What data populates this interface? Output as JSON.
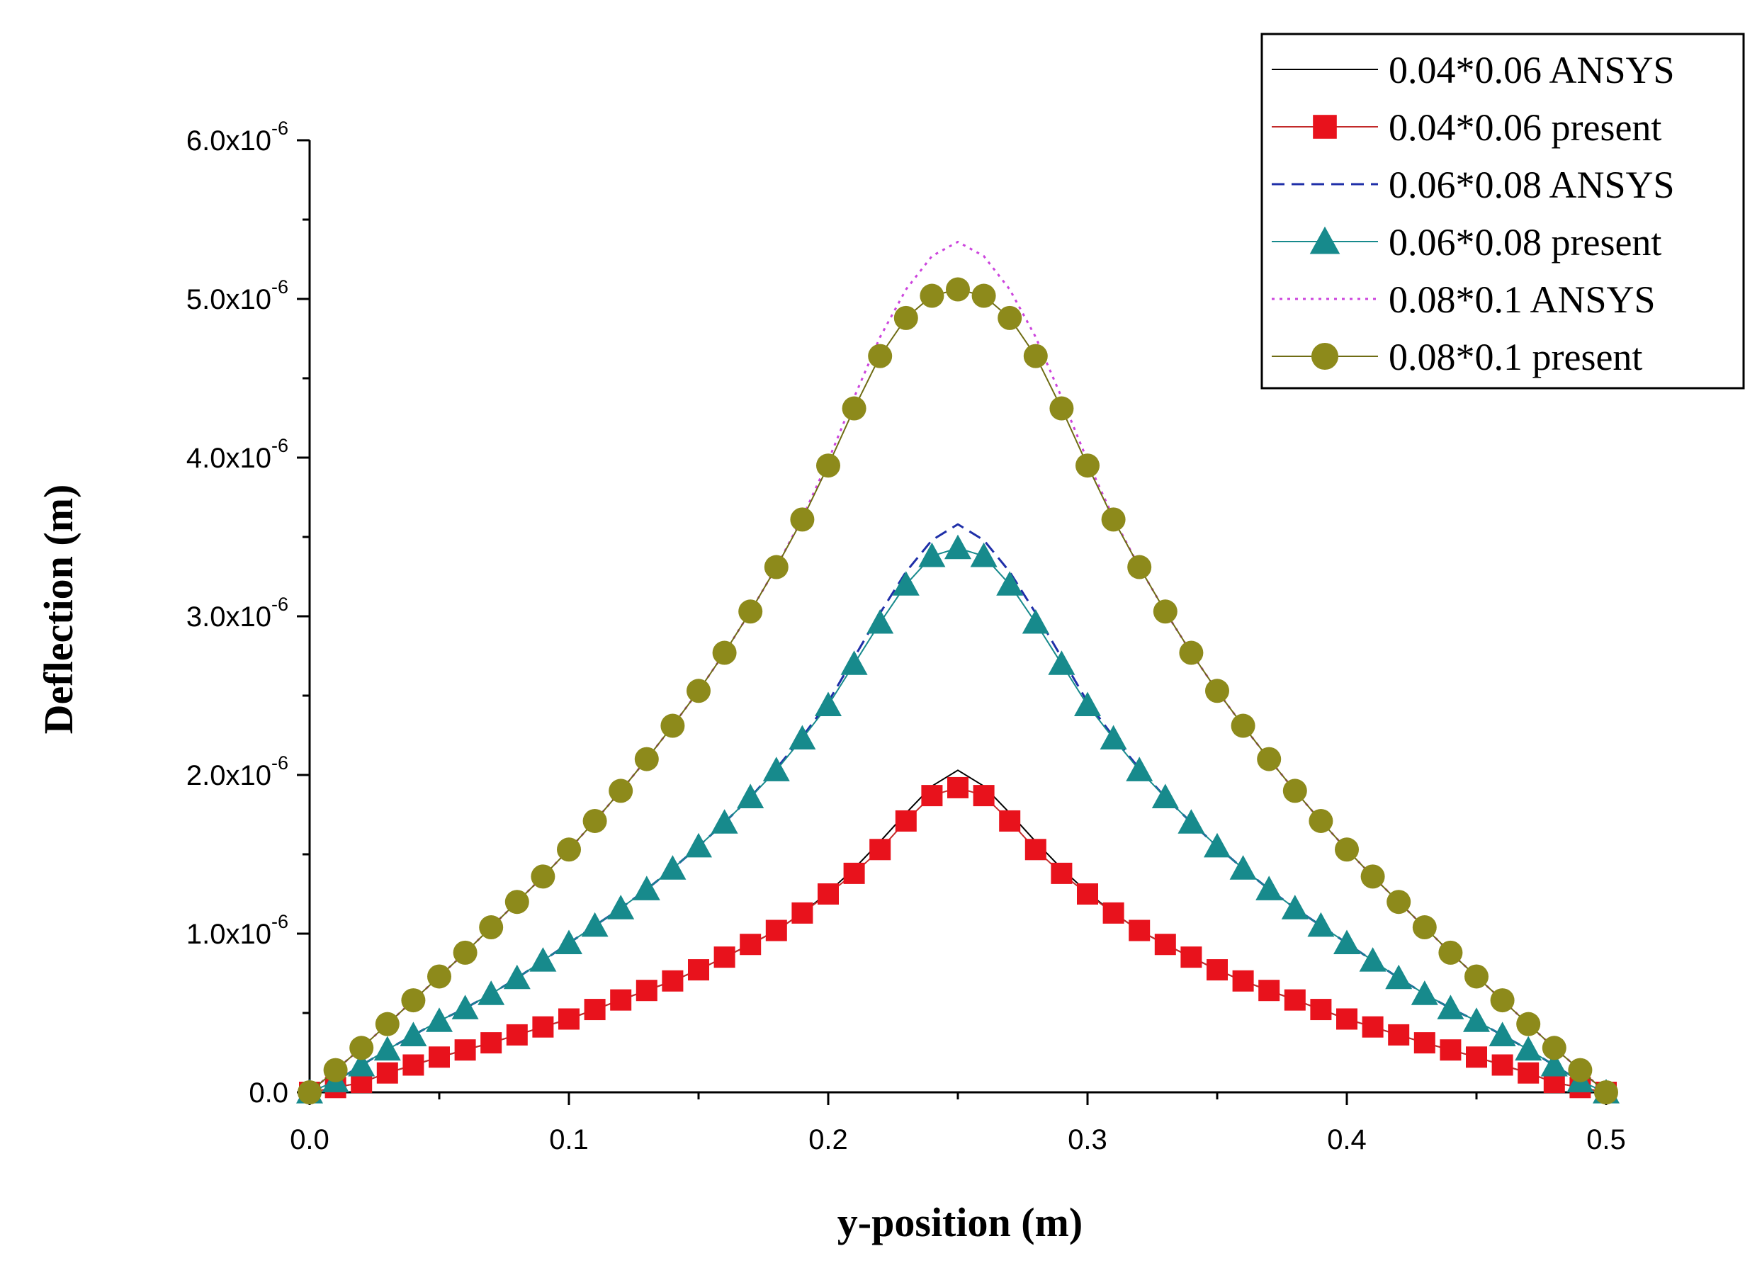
{
  "chart_data": {
    "type": "line",
    "title": "",
    "xlabel": "y-position (m)",
    "ylabel": "Deflection (m)",
    "xlim": [
      0,
      0.5
    ],
    "ylim": [
      0,
      6e-06
    ],
    "grid": false,
    "legend_position": "top-right",
    "x_ticks": [
      {
        "value": 0.0,
        "label": "0.0"
      },
      {
        "value": 0.1,
        "label": "0.1"
      },
      {
        "value": 0.2,
        "label": "0.2"
      },
      {
        "value": 0.3,
        "label": "0.3"
      },
      {
        "value": 0.4,
        "label": "0.4"
      },
      {
        "value": 0.5,
        "label": "0.5"
      }
    ],
    "y_ticks": [
      {
        "value": 0.0,
        "label": "0.0",
        "mantissa": "",
        "exponent": ""
      },
      {
        "value": 1e-06,
        "label": "1.0x10-6",
        "mantissa": "1.0x10",
        "exponent": "-6"
      },
      {
        "value": 2e-06,
        "label": "2.0x10-6",
        "mantissa": "2.0x10",
        "exponent": "-6"
      },
      {
        "value": 3e-06,
        "label": "3.0x10-6",
        "mantissa": "3.0x10",
        "exponent": "-6"
      },
      {
        "value": 4e-06,
        "label": "4.0x10-6",
        "mantissa": "4.0x10",
        "exponent": "-6"
      },
      {
        "value": 5e-06,
        "label": "5.0x10-6",
        "mantissa": "5.0x10",
        "exponent": "-6"
      },
      {
        "value": 6e-06,
        "label": "6.0x10-6",
        "mantissa": "6.0x10",
        "exponent": "-6"
      }
    ],
    "x": [
      0.0,
      0.01,
      0.02,
      0.03,
      0.04,
      0.05,
      0.06,
      0.07,
      0.08,
      0.09,
      0.1,
      0.11,
      0.12,
      0.13,
      0.14,
      0.15,
      0.16,
      0.17,
      0.18,
      0.19,
      0.2,
      0.21,
      0.22,
      0.23,
      0.24,
      0.25,
      0.26,
      0.27,
      0.28,
      0.29,
      0.3,
      0.31,
      0.32,
      0.33,
      0.34,
      0.35,
      0.36,
      0.37,
      0.38,
      0.39,
      0.4,
      0.41,
      0.42,
      0.43,
      0.44,
      0.45,
      0.46,
      0.47,
      0.48,
      0.49,
      0.5
    ],
    "series": [
      {
        "name": "0.04*0.06 ANSYS",
        "style": "solid",
        "marker": "none",
        "color": "#000000",
        "values": [
          0.0,
          3e-08,
          6.2e-08,
          1.22e-07,
          1.72e-07,
          2.22e-07,
          2.67e-07,
          3.12e-07,
          3.62e-07,
          4.12e-07,
          4.62e-07,
          5.22e-07,
          5.82e-07,
          6.42e-07,
          7.02e-07,
          7.72e-07,
          8.52e-07,
          9.32e-07,
          1.02e-06,
          1.13e-06,
          1.26e-06,
          1.41e-06,
          1.58e-06,
          1.76e-06,
          1.93e-06,
          2.03e-06,
          1.93e-06,
          1.76e-06,
          1.58e-06,
          1.41e-06,
          1.26e-06,
          1.13e-06,
          1.02e-06,
          9.32e-07,
          8.52e-07,
          7.72e-07,
          7.02e-07,
          6.42e-07,
          5.82e-07,
          5.22e-07,
          4.62e-07,
          4.12e-07,
          3.62e-07,
          3.12e-07,
          2.67e-07,
          2.22e-07,
          1.72e-07,
          1.22e-07,
          6.2e-08,
          3e-08,
          0.0
        ]
      },
      {
        "name": "0.04*0.06 present",
        "style": "solid",
        "marker": "square",
        "color": "#e8121c",
        "values": [
          0.0,
          3e-08,
          6.2e-08,
          1.22e-07,
          1.72e-07,
          2.22e-07,
          2.67e-07,
          3.12e-07,
          3.62e-07,
          4.12e-07,
          4.62e-07,
          5.22e-07,
          5.82e-07,
          6.42e-07,
          7.02e-07,
          7.72e-07,
          8.52e-07,
          9.32e-07,
          1.02e-06,
          1.13e-06,
          1.25e-06,
          1.38e-06,
          1.53e-06,
          1.71e-06,
          1.87e-06,
          1.92e-06,
          1.87e-06,
          1.71e-06,
          1.53e-06,
          1.38e-06,
          1.25e-06,
          1.13e-06,
          1.02e-06,
          9.32e-07,
          8.52e-07,
          7.72e-07,
          7.02e-07,
          6.42e-07,
          5.82e-07,
          5.22e-07,
          4.62e-07,
          4.12e-07,
          3.62e-07,
          3.12e-07,
          2.67e-07,
          2.22e-07,
          1.72e-07,
          1.22e-07,
          6.2e-08,
          3e-08,
          0.0
        ]
      },
      {
        "name": "0.06*0.08 ANSYS",
        "style": "dashed",
        "marker": "none",
        "color": "#1f2fa8",
        "values": [
          0.0,
          7e-08,
          1.7e-07,
          2.7e-07,
          3.6e-07,
          4.5e-07,
          5.3e-07,
          6.2e-07,
          7.2e-07,
          8.3e-07,
          9.4e-07,
          1.05e-06,
          1.16e-06,
          1.28e-06,
          1.41e-06,
          1.55e-06,
          1.7e-06,
          1.86e-06,
          2.04e-06,
          2.24e-06,
          2.46e-06,
          2.74e-06,
          3.02e-06,
          3.28e-06,
          3.48e-06,
          3.58e-06,
          3.48e-06,
          3.28e-06,
          3.02e-06,
          2.74e-06,
          2.46e-06,
          2.24e-06,
          2.04e-06,
          1.86e-06,
          1.7e-06,
          1.55e-06,
          1.41e-06,
          1.28e-06,
          1.16e-06,
          1.05e-06,
          9.4e-07,
          8.3e-07,
          7.2e-07,
          6.2e-07,
          5.3e-07,
          4.5e-07,
          3.6e-07,
          2.7e-07,
          1.7e-07,
          7e-08,
          0.0
        ]
      },
      {
        "name": "0.06*0.08 present",
        "style": "solid",
        "marker": "triangle",
        "color": "#178a8c",
        "values": [
          0.0,
          7e-08,
          1.7e-07,
          2.7e-07,
          3.6e-07,
          4.5e-07,
          5.3e-07,
          6.2e-07,
          7.2e-07,
          8.3e-07,
          9.4e-07,
          1.05e-06,
          1.16e-06,
          1.28e-06,
          1.41e-06,
          1.55e-06,
          1.7e-06,
          1.86e-06,
          2.03e-06,
          2.23e-06,
          2.44e-06,
          2.7e-06,
          2.96e-06,
          3.2e-06,
          3.38e-06,
          3.43e-06,
          3.38e-06,
          3.2e-06,
          2.96e-06,
          2.7e-06,
          2.44e-06,
          2.23e-06,
          2.03e-06,
          1.86e-06,
          1.7e-06,
          1.55e-06,
          1.41e-06,
          1.28e-06,
          1.16e-06,
          1.05e-06,
          9.4e-07,
          8.3e-07,
          7.2e-07,
          6.2e-07,
          5.3e-07,
          4.5e-07,
          3.6e-07,
          2.7e-07,
          1.7e-07,
          7e-08,
          0.0
        ]
      },
      {
        "name": "0.08*0.1 ANSYS",
        "style": "dotted",
        "marker": "none",
        "color": "#cc44dd",
        "values": [
          0.0,
          1.4e-07,
          2.8e-07,
          4.3e-07,
          5.8e-07,
          7.3e-07,
          8.8e-07,
          1.04e-06,
          1.2e-06,
          1.36e-06,
          1.53e-06,
          1.71e-06,
          1.9e-06,
          2.1e-06,
          2.31e-06,
          2.53e-06,
          2.77e-06,
          3.03e-06,
          3.31e-06,
          3.62e-06,
          3.98e-06,
          4.38e-06,
          4.76e-06,
          5.06e-06,
          5.27e-06,
          5.36e-06,
          5.27e-06,
          5.06e-06,
          4.76e-06,
          4.38e-06,
          3.98e-06,
          3.62e-06,
          3.31e-06,
          3.03e-06,
          2.77e-06,
          2.53e-06,
          2.31e-06,
          2.1e-06,
          1.9e-06,
          1.71e-06,
          1.53e-06,
          1.36e-06,
          1.2e-06,
          1.04e-06,
          8.8e-07,
          7.3e-07,
          5.8e-07,
          4.3e-07,
          2.8e-07,
          1.4e-07,
          0.0
        ]
      },
      {
        "name": "0.08*0.1 present",
        "style": "solid",
        "marker": "circle",
        "color": "#8d8a1b",
        "values": [
          0.0,
          1.4e-07,
          2.8e-07,
          4.3e-07,
          5.8e-07,
          7.3e-07,
          8.8e-07,
          1.04e-06,
          1.2e-06,
          1.36e-06,
          1.53e-06,
          1.71e-06,
          1.9e-06,
          2.1e-06,
          2.31e-06,
          2.53e-06,
          2.77e-06,
          3.03e-06,
          3.31e-06,
          3.61e-06,
          3.95e-06,
          4.31e-06,
          4.64e-06,
          4.88e-06,
          5.02e-06,
          5.06e-06,
          5.02e-06,
          4.88e-06,
          4.64e-06,
          4.31e-06,
          3.95e-06,
          3.61e-06,
          3.31e-06,
          3.03e-06,
          2.77e-06,
          2.53e-06,
          2.31e-06,
          2.1e-06,
          1.9e-06,
          1.71e-06,
          1.53e-06,
          1.36e-06,
          1.2e-06,
          1.04e-06,
          8.8e-07,
          7.3e-07,
          5.8e-07,
          4.3e-07,
          2.8e-07,
          1.4e-07,
          0.0
        ]
      }
    ]
  },
  "colors": {
    "black": "#000000",
    "red_marker": "#e8121c",
    "red_line": "#c22a2a",
    "navy_dash": "#1f2fa8",
    "teal_marker": "#178a8c",
    "magenta_dot": "#cc44dd",
    "olive_marker": "#8d8a1b",
    "olive_line": "#6f6c14"
  }
}
